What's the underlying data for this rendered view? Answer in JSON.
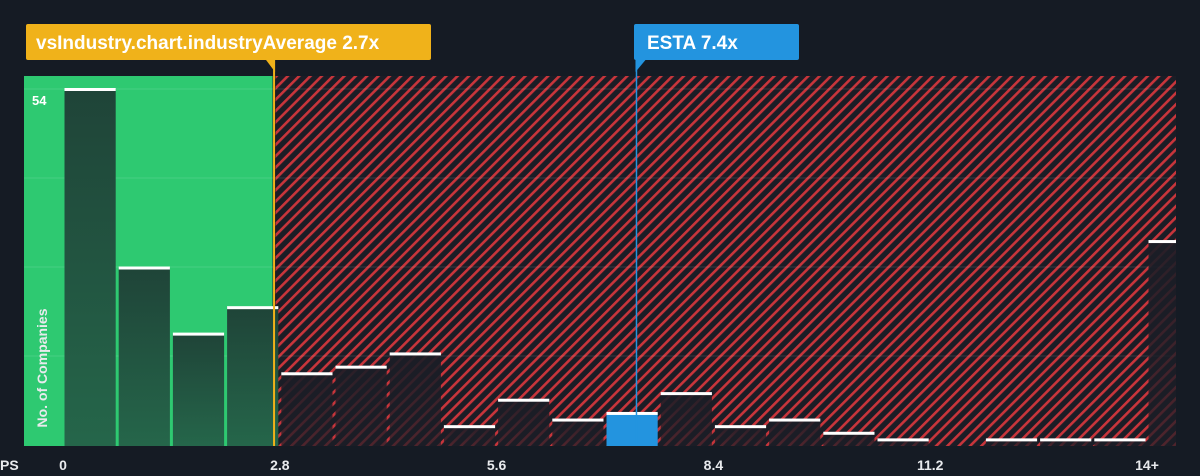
{
  "chart_data": {
    "type": "bar",
    "title": "",
    "xlabel": "PS",
    "ylabel": "No. of Companies",
    "x_ticks": [
      "0",
      "2.8",
      "5.6",
      "8.4",
      "11.2",
      "14+"
    ],
    "x_tick_values": [
      0,
      2.8,
      5.6,
      8.4,
      11.2,
      14
    ],
    "xlim": [
      -0.1,
      14.3
    ],
    "ylim": [
      0,
      54
    ],
    "y_tick_label": "54",
    "bin_width": 0.7,
    "bins": [
      {
        "x0": 0.0,
        "value": 54
      },
      {
        "x0": 0.7,
        "value": 27
      },
      {
        "x0": 1.4,
        "value": 17
      },
      {
        "x0": 2.1,
        "value": 21
      },
      {
        "x0": 2.8,
        "value": 11
      },
      {
        "x0": 3.5,
        "value": 12
      },
      {
        "x0": 4.2,
        "value": 14
      },
      {
        "x0": 4.9,
        "value": 3
      },
      {
        "x0": 5.6,
        "value": 7
      },
      {
        "x0": 6.3,
        "value": 4
      },
      {
        "x0": 7.0,
        "value": 5
      },
      {
        "x0": 7.7,
        "value": 8
      },
      {
        "x0": 8.4,
        "value": 3
      },
      {
        "x0": 9.1,
        "value": 4
      },
      {
        "x0": 9.8,
        "value": 2
      },
      {
        "x0": 10.5,
        "value": 1
      },
      {
        "x0": 11.2,
        "value": 0
      },
      {
        "x0": 11.9,
        "value": 1
      },
      {
        "x0": 12.6,
        "value": 1
      },
      {
        "x0": 13.3,
        "value": 1
      },
      {
        "x0": 14.0,
        "value": 31
      }
    ],
    "industry_average": {
      "label": "vsIndustry.chart.industryAverage 2.7x",
      "value": 2.7
    },
    "company": {
      "label": "ESTA 7.4x",
      "value": 7.4,
      "bin_x0": 7.0
    },
    "fair_region_end": 2.7,
    "colors": {
      "background": "#151b24",
      "fair": "#2ec971",
      "expensive": "#d63a3f",
      "company": "#2394df",
      "average_line": "#f0b21a",
      "bar_dark": "#1e3d33",
      "bar_cap": "#ffffff"
    },
    "grid": true,
    "legend": "none"
  }
}
